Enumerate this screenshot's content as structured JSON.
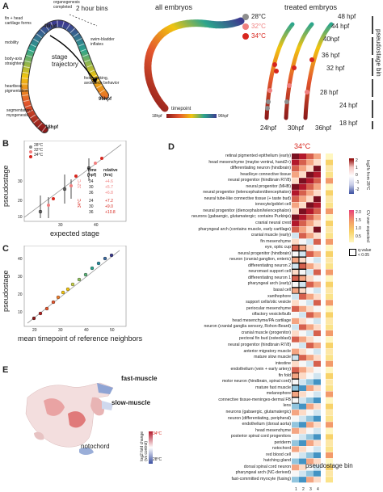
{
  "panel_a": {
    "label": "A",
    "time_bins_label": "2 hour bins",
    "stage_trajectory": "stage\ntrajectory",
    "annotations": [
      "organogenesis\ncompleted",
      "fin + head\ncartilage forms",
      "mobility",
      "body-axis\nstraightens",
      "heartbeat,\npigmentation",
      "segmentation,\nmyogenesis",
      "swim-bladder\ninflates",
      "food-seeking,\navoidance behavior"
    ],
    "hpf_48": "48hpf",
    "hpf_96": "96hpf",
    "hpf_18": "18hpf",
    "all_embryos": "all embryos",
    "treated_embryos": "treated embryos",
    "timepoint": "timepoint",
    "tp_min": "18hpf",
    "tp_max": "96hpf",
    "legend": [
      "28°C",
      "32°C",
      "34°C"
    ],
    "treated_hpf": [
      "24hpf",
      "30hpf",
      "36hpf"
    ],
    "right_hpf": [
      "48 hpf",
      "44 hpf",
      "40hpf",
      "36 hpf",
      "32 hpf",
      "28 hpf",
      "24 hpf",
      "18 hpf"
    ],
    "pseudostage_bin": "pseudostage bin"
  },
  "panel_b": {
    "label": "B",
    "ylabel": "pseudostage",
    "xlabel": "expected stage",
    "legend": [
      "28°C",
      "32°C",
      "34°C"
    ],
    "table_head": [
      "Time\n(hpf)",
      "relative\n(hrs)"
    ],
    "rows_32": [
      [
        "24",
        "+4.6"
      ],
      [
        "30",
        "+5.7"
      ],
      [
        "36",
        "+6.8"
      ]
    ],
    "rows_34": [
      [
        "24",
        "+7.2"
      ],
      [
        "30",
        "+9.0"
      ],
      [
        "36",
        "+10.8"
      ]
    ],
    "group_32": "32°C",
    "group_34": "34°C",
    "yticks": [
      "10",
      "20",
      "30"
    ],
    "xticks": [
      "30",
      "40"
    ]
  },
  "panel_c": {
    "label": "C",
    "ylabel": "pseudostage",
    "xlabel": "mean timepoint of reference neighbors",
    "yticks": [
      "10",
      "20",
      "30",
      "40"
    ],
    "xticks": [
      "20",
      "30",
      "40",
      "50"
    ]
  },
  "panel_d": {
    "label": "D",
    "title": "34°C",
    "xlabel": "pseudostage bin",
    "xticks": [
      "1",
      "2",
      "3",
      "4"
    ],
    "legend_top": "log2fc from 28°C",
    "legend_top_ticks": [
      "2",
      "1",
      "0",
      "-1",
      "-2"
    ],
    "legend_mid": "CV over expected",
    "legend_mid_ticks": [
      "2.0",
      "1.5",
      "1.0",
      "0.5"
    ],
    "legend_q": "q-value\n< 0.05",
    "rows": [
      "retinal pigmented epithelium (early)",
      "head mesenchyme (maybe ventral, hand2+)",
      "differentiating neuron (hindbrain)",
      "head/eye connective tissue",
      "neural progenitor (hindbrain R7/8)",
      "neural progenitor (MHB)",
      "neural progenitor (telencephalon/diencephalon)",
      "neural tube-like connective tissue (+ taste bud)",
      "ionocyte/goblet cell",
      "neural progenitor (diencephalon/telencephalon)",
      "neurons (gabaergic, glutamatergic; contains Purkinje)",
      "cranial neural crest",
      "pharyngeal arch (contains muscle, early cartilage)",
      "cranial muscle (early)",
      "fin mesenchyme",
      "eye, optic cup",
      "neural progenitor (hindbrain)",
      "neuron (cranial ganglion, enteric)",
      "differentiating neuron 2",
      "neuromast support cell",
      "differentiating neuron 1",
      "pharyngeal arch (early)",
      "basal cell",
      "xanthophore",
      "support cells/otic vesicle",
      "periocular mesenchyme",
      "olfactory vesicle/bulb",
      "head mesenchyme/PA cartilage",
      "neuron (cranial ganglia sensory, Rohon-Beard)",
      "cranial muscle (progenitor)",
      "pectoral fin bud (osteoblast)",
      "neural progenitor (hindbrain R7/8)",
      "anterior migratory muscle",
      "mature slow muscle",
      "intestine",
      "endothelium (vein + early artery)",
      "fin fold",
      "motor neuron (hindbrain, spinal cord)",
      "mature fast muscle",
      "melanophore",
      "connective tissue-meninges-dermal FB",
      "lens",
      "neurons (gabaergic, glutamatergic)",
      "neuron (differentiating, peripheral)",
      "endothelium (dorsal aorta)",
      "head mesenchyme",
      "posterior spinal cord progenitors",
      "periderm",
      "notochord",
      "red blood cell",
      "hatching gland",
      "dorsal spinal cord neuron",
      "pharyngeal arch (NC-derived)",
      "fast-committed myocyte (fusing)"
    ]
  },
  "panel_e": {
    "label": "E",
    "fast_muscle": "fast-muscle",
    "slow_muscle": "slow-muscle",
    "notochord": "notochord",
    "scale_label": "log2 fold change\n(vs control)",
    "scale_top": "34°C",
    "scale_bottom": "28°C"
  },
  "colors": {
    "c28": "#8e8e8e",
    "c32": "#f08080",
    "c34": "#d7261e",
    "high": "#b2182b",
    "low": "#3a4fa0"
  }
}
